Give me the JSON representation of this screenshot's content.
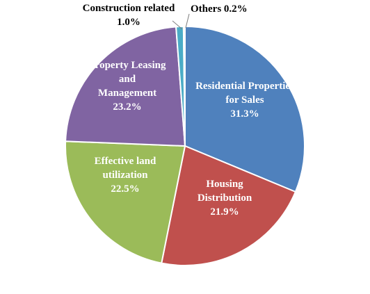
{
  "chart_data": {
    "type": "pie",
    "title": "",
    "slices": [
      {
        "label_lines": [
          "Residential Properties",
          "for Sales",
          "31.3%"
        ],
        "value": 31.3,
        "color": "#4f81bd",
        "label_position": "inside"
      },
      {
        "label_lines": [
          "Housing",
          "Distribution",
          "21.9%"
        ],
        "value": 21.9,
        "color": "#c0504d",
        "label_position": "inside"
      },
      {
        "label_lines": [
          "Effective land",
          "utilization",
          "22.5%"
        ],
        "value": 22.5,
        "color": "#9bbb59",
        "label_position": "inside"
      },
      {
        "label_lines": [
          "Property Leasing",
          "and",
          "Management",
          "23.2%"
        ],
        "value": 23.2,
        "color": "#8064a2",
        "label_position": "inside"
      },
      {
        "label_lines": [
          "Construction related",
          "1.0%"
        ],
        "value": 1.0,
        "color": "#4bacc6",
        "label_position": "outside"
      },
      {
        "label_lines": [
          "Others  0.2%"
        ],
        "value": 0.2,
        "color": "#f79646",
        "label_position": "outside"
      }
    ]
  }
}
